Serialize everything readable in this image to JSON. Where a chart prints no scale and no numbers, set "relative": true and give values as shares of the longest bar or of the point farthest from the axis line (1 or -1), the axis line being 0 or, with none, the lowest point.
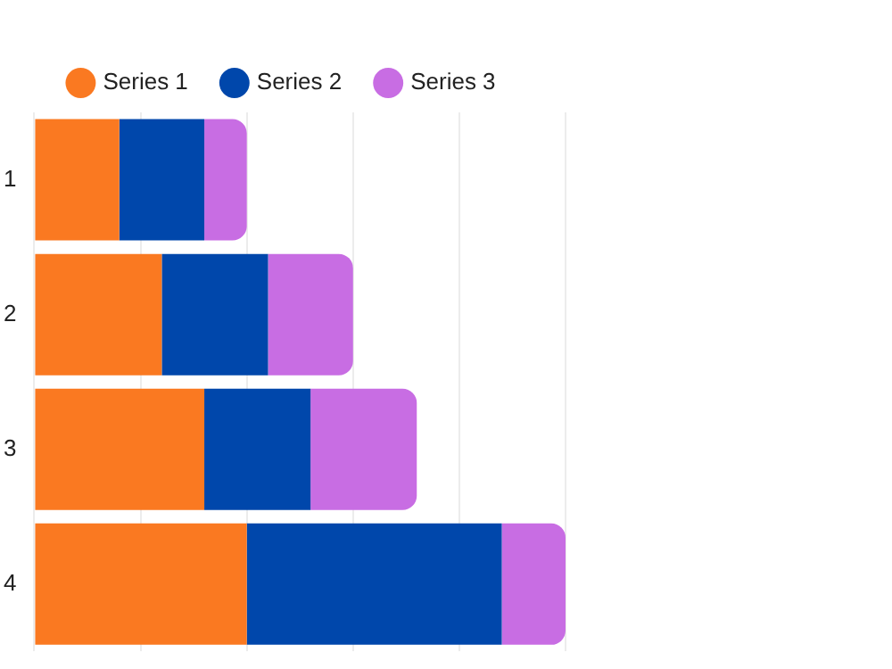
{
  "chart_data": {
    "type": "bar",
    "orientation": "horizontal",
    "stacked": true,
    "relative": true,
    "categories": [
      "1",
      "2",
      "3",
      "4"
    ],
    "series": [
      {
        "name": "Series 1",
        "color": "#fa7921",
        "values": [
          0.16,
          0.24,
          0.32,
          0.4
        ]
      },
      {
        "name": "Series 2",
        "color": "#0047ab",
        "values": [
          0.16,
          0.2,
          0.2,
          0.48
        ]
      },
      {
        "name": "Series 3",
        "color": "#c86de3",
        "values": [
          0.08,
          0.16,
          0.2,
          0.12
        ]
      }
    ],
    "grid": "x",
    "legend": "top"
  }
}
